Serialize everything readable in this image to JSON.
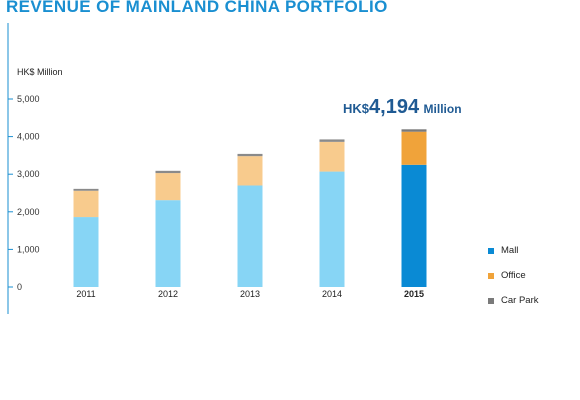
{
  "header": {
    "title": "REVENUE OF MAINLAND CHINA PORTFOLIO"
  },
  "colors": {
    "title": "#1a8fd1",
    "axis": "#1a8fd1",
    "annotation": "#1f5a93",
    "mall_past": "#87d5f5",
    "office_past": "#f8cb8d",
    "carpark_past": "#8a8a8a",
    "mall_2015": "#0a8ad4",
    "office_2015": "#f0a33a",
    "carpark_2015": "#7a7a7a"
  },
  "annotation": {
    "prefix": "HK$",
    "value": "4,194",
    "suffix": "Million"
  },
  "chart_data": {
    "type": "bar",
    "stacked": true,
    "title": "REVENUE OF MAINLAND CHINA PORTFOLIO",
    "ylabel": "HK$ Million",
    "xlabel": "",
    "categories": [
      "2011",
      "2012",
      "2013",
      "2014",
      "2015"
    ],
    "highlight_category": "2015",
    "yticks": [
      "5,000",
      "4,000",
      "3,000",
      "2,000",
      "1,000",
      "0"
    ],
    "ylim": [
      0,
      5500
    ],
    "grid": false,
    "legend_position": "right",
    "series": [
      {
        "name": "Mall",
        "values": [
          1860,
          2310,
          2700,
          3070,
          3250
        ]
      },
      {
        "name": "Office",
        "values": [
          700,
          720,
          780,
          790,
          880
        ]
      },
      {
        "name": "Car Park",
        "values": [
          50,
          60,
          60,
          65,
          64
        ]
      }
    ],
    "totals": [
      2610,
      3090,
      3540,
      3925,
      4194
    ]
  }
}
